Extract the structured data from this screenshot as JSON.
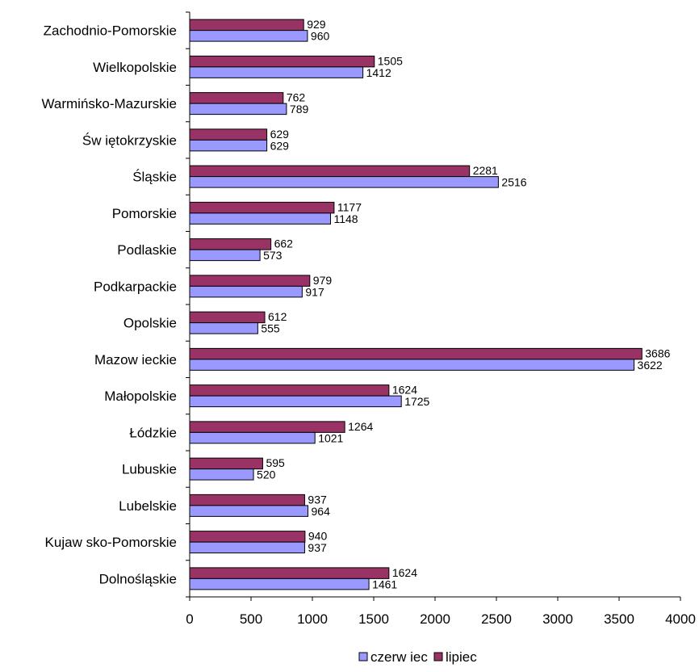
{
  "chart_data": {
    "type": "bar",
    "orientation": "horizontal",
    "categories": [
      "Dolnośląskie",
      "Kujaw sko-Pomorskie",
      "Lubelskie",
      "Lubuskie",
      "Łódzkie",
      "Małopolskie",
      "Mazow ieckie",
      "Opolskie",
      "Podkarpackie",
      "Podlaskie",
      "Pomorskie",
      "Śląskie",
      "Św iętokrzyskie",
      "Warmińsko-Mazurskie",
      "Wielkopolskie",
      "Zachodnio-Pomorskie"
    ],
    "series": [
      {
        "name": "czerw iec",
        "color": "#9999ff",
        "values": [
          1461,
          937,
          964,
          520,
          1021,
          1725,
          3622,
          555,
          917,
          573,
          1148,
          2516,
          629,
          789,
          1412,
          960
        ]
      },
      {
        "name": "lipiec",
        "color": "#993366",
        "values": [
          1624,
          940,
          937,
          595,
          1264,
          1624,
          3686,
          612,
          979,
          662,
          1177,
          2281,
          629,
          762,
          1505,
          929
        ]
      }
    ],
    "xlim": [
      0,
      4000
    ],
    "xticks": [
      "0",
      "500",
      "1000",
      "1500",
      "2000",
      "2500",
      "3000",
      "3500",
      "4000"
    ],
    "grid": false,
    "legend_position": "bottom"
  }
}
